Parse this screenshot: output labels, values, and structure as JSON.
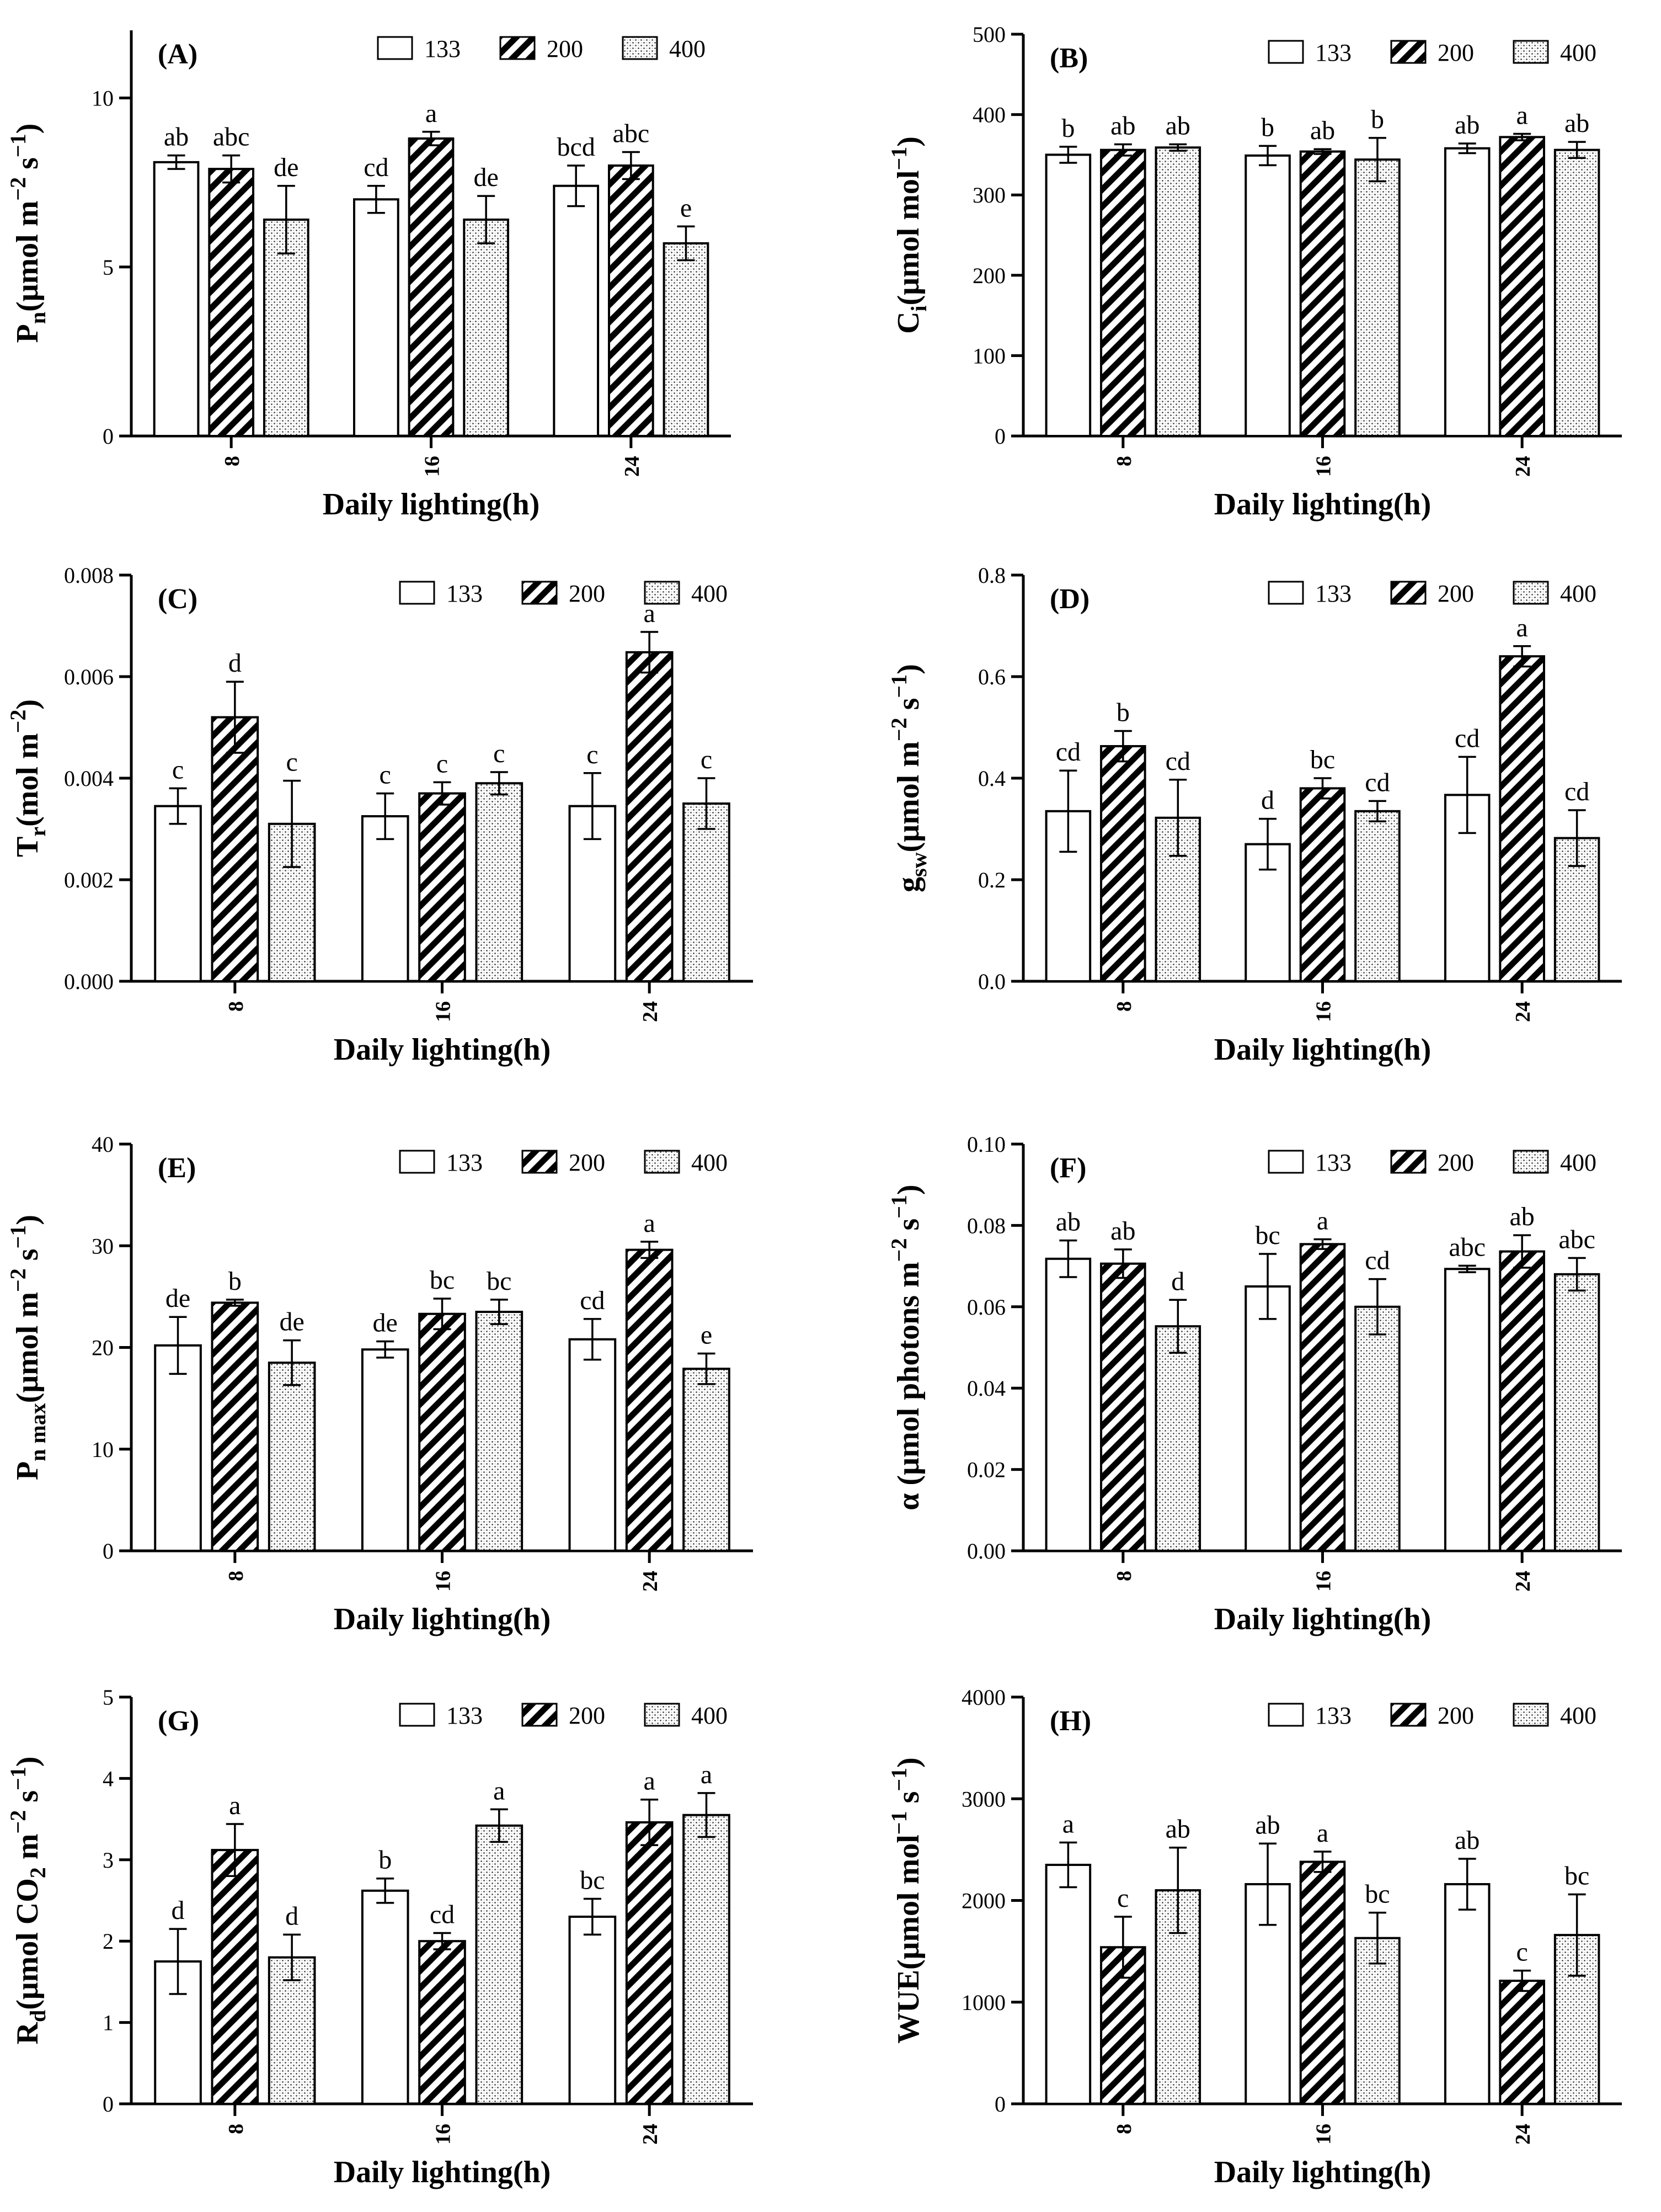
{
  "legend": [
    "133",
    "200",
    "400"
  ],
  "xlabel": "Daily lighting(h)",
  "categories": [
    "8",
    "16",
    "24"
  ],
  "chart_data": [
    {
      "type": "bar",
      "panel_label": "(A)",
      "categories": [
        "8",
        "16",
        "24"
      ],
      "xlabel": "Daily lighting(h)",
      "ylabel": {
        "main": "P",
        "sub": "n",
        "rest": "(μmol m",
        "sup1": "−2",
        "mid": " s",
        "sup2": "−1",
        "end": ")"
      },
      "ylim": [
        0,
        12
      ],
      "yticks": [
        "0",
        "5",
        "10"
      ],
      "ytick_values": [
        0,
        5,
        10
      ],
      "series": [
        {
          "name": "133",
          "values": [
            8.1,
            7.0,
            7.4
          ],
          "errors": [
            0.2,
            0.4,
            0.6
          ]
        },
        {
          "name": "200",
          "values": [
            7.9,
            8.8,
            8.0
          ],
          "errors": [
            0.4,
            0.2,
            0.4
          ]
        },
        {
          "name": "400",
          "values": [
            6.4,
            6.4,
            5.7
          ],
          "errors": [
            1.0,
            0.7,
            0.5
          ]
        }
      ],
      "letters": [
        [
          "ab",
          "cd",
          "bcd"
        ],
        [
          "abc",
          "a",
          "abc"
        ],
        [
          "de",
          "de",
          "e"
        ]
      ]
    },
    {
      "type": "bar",
      "panel_label": "(B)",
      "categories": [
        "8",
        "16",
        "24"
      ],
      "xlabel": "Daily lighting(h)",
      "ylabel": {
        "main": "C",
        "sub": "i",
        "rest": "(μmol mol",
        "sup1": "−1",
        "mid": "",
        "sup2": "",
        "end": ")"
      },
      "ylim": [
        0,
        500
      ],
      "yticks": [
        "0",
        "100",
        "200",
        "300",
        "400",
        "500"
      ],
      "ytick_values": [
        0,
        100,
        200,
        300,
        400,
        500
      ],
      "series": [
        {
          "name": "133",
          "values": [
            350,
            349,
            358
          ],
          "errors": [
            10,
            12,
            6
          ]
        },
        {
          "name": "200",
          "values": [
            356,
            354,
            372
          ],
          "errors": [
            7,
            3,
            4
          ]
        },
        {
          "name": "400",
          "values": [
            359,
            344,
            356
          ],
          "errors": [
            4,
            27,
            10
          ]
        }
      ],
      "letters": [
        [
          "b",
          "b",
          "ab"
        ],
        [
          "ab",
          "ab",
          "a"
        ],
        [
          "ab",
          "b",
          "ab"
        ]
      ]
    },
    {
      "type": "bar",
      "panel_label": "(C)",
      "categories": [
        "8",
        "16",
        "24"
      ],
      "xlabel": "Daily lighting(h)",
      "ylabel": {
        "main": "T",
        "sub": "r",
        "rest": "(mol m",
        "sup1": "−2",
        "mid": "",
        "sup2": "",
        "end": ")"
      },
      "ylim": [
        0,
        0.008
      ],
      "yticks": [
        "0.000",
        "0.002",
        "0.004",
        "0.006",
        "0.008"
      ],
      "ytick_values": [
        0,
        0.002,
        0.004,
        0.006,
        0.008
      ],
      "series": [
        {
          "name": "133",
          "values": [
            0.00345,
            0.00325,
            0.00345
          ],
          "errors": [
            0.00035,
            0.00045,
            0.00065
          ]
        },
        {
          "name": "200",
          "values": [
            0.0052,
            0.0037,
            0.00648
          ],
          "errors": [
            0.0007,
            0.00022,
            0.0004
          ]
        },
        {
          "name": "400",
          "values": [
            0.0031,
            0.0039,
            0.0035
          ],
          "errors": [
            0.00085,
            0.00022,
            0.0005
          ]
        }
      ],
      "letters": [
        [
          "c",
          "c",
          "c"
        ],
        [
          "d",
          "c",
          "a"
        ],
        [
          "c",
          "c",
          "c"
        ]
      ]
    },
    {
      "type": "bar",
      "panel_label": "(D)",
      "categories": [
        "8",
        "16",
        "24"
      ],
      "xlabel": "Daily lighting(h)",
      "ylabel": {
        "main": "g",
        "sub": "sw",
        "rest": "(μmol m",
        "sup1": "−2",
        "mid": " s",
        "sup2": "−1",
        "end": ")"
      },
      "ylim": [
        0,
        0.8
      ],
      "yticks": [
        "0.0",
        "0.2",
        "0.4",
        "0.6",
        "0.8"
      ],
      "ytick_values": [
        0,
        0.2,
        0.4,
        0.6,
        0.8
      ],
      "series": [
        {
          "name": "133",
          "values": [
            0.335,
            0.27,
            0.367
          ],
          "errors": [
            0.08,
            0.05,
            0.075
          ]
        },
        {
          "name": "200",
          "values": [
            0.463,
            0.38,
            0.64
          ],
          "errors": [
            0.03,
            0.02,
            0.02
          ]
        },
        {
          "name": "400",
          "values": [
            0.322,
            0.335,
            0.282
          ],
          "errors": [
            0.075,
            0.02,
            0.055
          ]
        }
      ],
      "letters": [
        [
          "cd",
          "d",
          "cd"
        ],
        [
          "b",
          "bc",
          "a"
        ],
        [
          "cd",
          "cd",
          "cd"
        ]
      ]
    },
    {
      "type": "bar",
      "panel_label": "(E)",
      "categories": [
        "8",
        "16",
        "24"
      ],
      "xlabel": "Daily lighting(h)",
      "ylabel": {
        "main": "P",
        "sub": "n max",
        "rest": "(μmol m",
        "sup1": "−2",
        "mid": " s",
        "sup2": "−1",
        "end": ")"
      },
      "ylim": [
        0,
        40
      ],
      "yticks": [
        "0",
        "10",
        "20",
        "30",
        "40"
      ],
      "ytick_values": [
        0,
        10,
        20,
        30,
        40
      ],
      "series": [
        {
          "name": "133",
          "values": [
            20.2,
            19.8,
            20.8
          ],
          "errors": [
            2.8,
            0.8,
            2.0
          ]
        },
        {
          "name": "200",
          "values": [
            24.4,
            23.3,
            29.6
          ],
          "errors": [
            0.3,
            1.5,
            0.8
          ]
        },
        {
          "name": "400",
          "values": [
            18.5,
            23.5,
            17.9
          ],
          "errors": [
            2.2,
            1.2,
            1.5
          ]
        }
      ],
      "letters": [
        [
          "de",
          "de",
          "cd"
        ],
        [
          "b",
          "bc",
          "a"
        ],
        [
          "de",
          "bc",
          "e"
        ]
      ]
    },
    {
      "type": "bar",
      "panel_label": "(F)",
      "categories": [
        "8",
        "16",
        "24"
      ],
      "xlabel": "Daily lighting(h)",
      "ylabel": {
        "main": "α",
        "sub": "",
        "rest": " (μmol photons m",
        "sup1": "−2",
        "mid": " s",
        "sup2": "−1",
        "end": ")"
      },
      "ylim": [
        0,
        0.1
      ],
      "yticks": [
        "0.00",
        "0.02",
        "0.04",
        "0.06",
        "0.08",
        "0.10"
      ],
      "ytick_values": [
        0,
        0.02,
        0.04,
        0.06,
        0.08,
        0.1
      ],
      "series": [
        {
          "name": "133",
          "values": [
            0.0718,
            0.065,
            0.0693
          ],
          "errors": [
            0.0045,
            0.008,
            0.0008
          ]
        },
        {
          "name": "200",
          "values": [
            0.0706,
            0.0754,
            0.0736
          ],
          "errors": [
            0.0035,
            0.0012,
            0.004
          ]
        },
        {
          "name": "400",
          "values": [
            0.0552,
            0.06,
            0.068
          ],
          "errors": [
            0.0065,
            0.0068,
            0.004
          ]
        }
      ],
      "letters": [
        [
          "ab",
          "bc",
          "abc"
        ],
        [
          "ab",
          "a",
          "ab"
        ],
        [
          "d",
          "cd",
          "abc"
        ]
      ]
    },
    {
      "type": "bar",
      "panel_label": "(G)",
      "categories": [
        "8",
        "16",
        "24"
      ],
      "xlabel": "Daily lighting(h)",
      "ylabel": {
        "main": "R",
        "sub": "d",
        "rest": "(μmol CO",
        "sup1": "",
        "mid": "",
        "sup2": "",
        "end": "",
        "co2": true,
        "tail": " m",
        "tsup1": "−2",
        "tmid": " s",
        "tsup2": "−1",
        "tend": ")"
      },
      "ylim": [
        0,
        5
      ],
      "yticks": [
        "0",
        "1",
        "2",
        "3",
        "4",
        "5"
      ],
      "ytick_values": [
        0,
        1,
        2,
        3,
        4,
        5
      ],
      "series": [
        {
          "name": "133",
          "values": [
            1.75,
            2.62,
            2.3
          ],
          "errors": [
            0.4,
            0.15,
            0.22
          ]
        },
        {
          "name": "200",
          "values": [
            3.12,
            2.0,
            3.46
          ],
          "errors": [
            0.32,
            0.1,
            0.28
          ]
        },
        {
          "name": "400",
          "values": [
            1.8,
            3.42,
            3.55
          ],
          "errors": [
            0.28,
            0.2,
            0.27
          ]
        }
      ],
      "letters": [
        [
          "d",
          "b",
          "bc"
        ],
        [
          "a",
          "cd",
          "a"
        ],
        [
          "d",
          "a",
          "a"
        ]
      ]
    },
    {
      "type": "bar",
      "panel_label": "(H)",
      "categories": [
        "8",
        "16",
        "24"
      ],
      "xlabel": "Daily lighting(h)",
      "ylabel": {
        "main": "WUE",
        "sub": "",
        "rest": "(μmol mol",
        "sup1": "−1",
        "mid": " s",
        "sup2": "−1",
        "end": ")"
      },
      "ylim": [
        0,
        4000
      ],
      "yticks": [
        "0",
        "1000",
        "2000",
        "3000",
        "4000"
      ],
      "ytick_values": [
        0,
        1000,
        2000,
        3000,
        4000
      ],
      "series": [
        {
          "name": "133",
          "values": [
            2350,
            2160,
            2160
          ],
          "errors": [
            220,
            400,
            250
          ]
        },
        {
          "name": "200",
          "values": [
            1540,
            2380,
            1210
          ],
          "errors": [
            300,
            100,
            100
          ]
        },
        {
          "name": "400",
          "values": [
            2100,
            1630,
            1660
          ],
          "errors": [
            420,
            250,
            400
          ]
        }
      ],
      "letters": [
        [
          "a",
          "ab",
          "ab"
        ],
        [
          "c",
          "a",
          "c"
        ],
        [
          "ab",
          "bc",
          "bc"
        ]
      ]
    }
  ]
}
